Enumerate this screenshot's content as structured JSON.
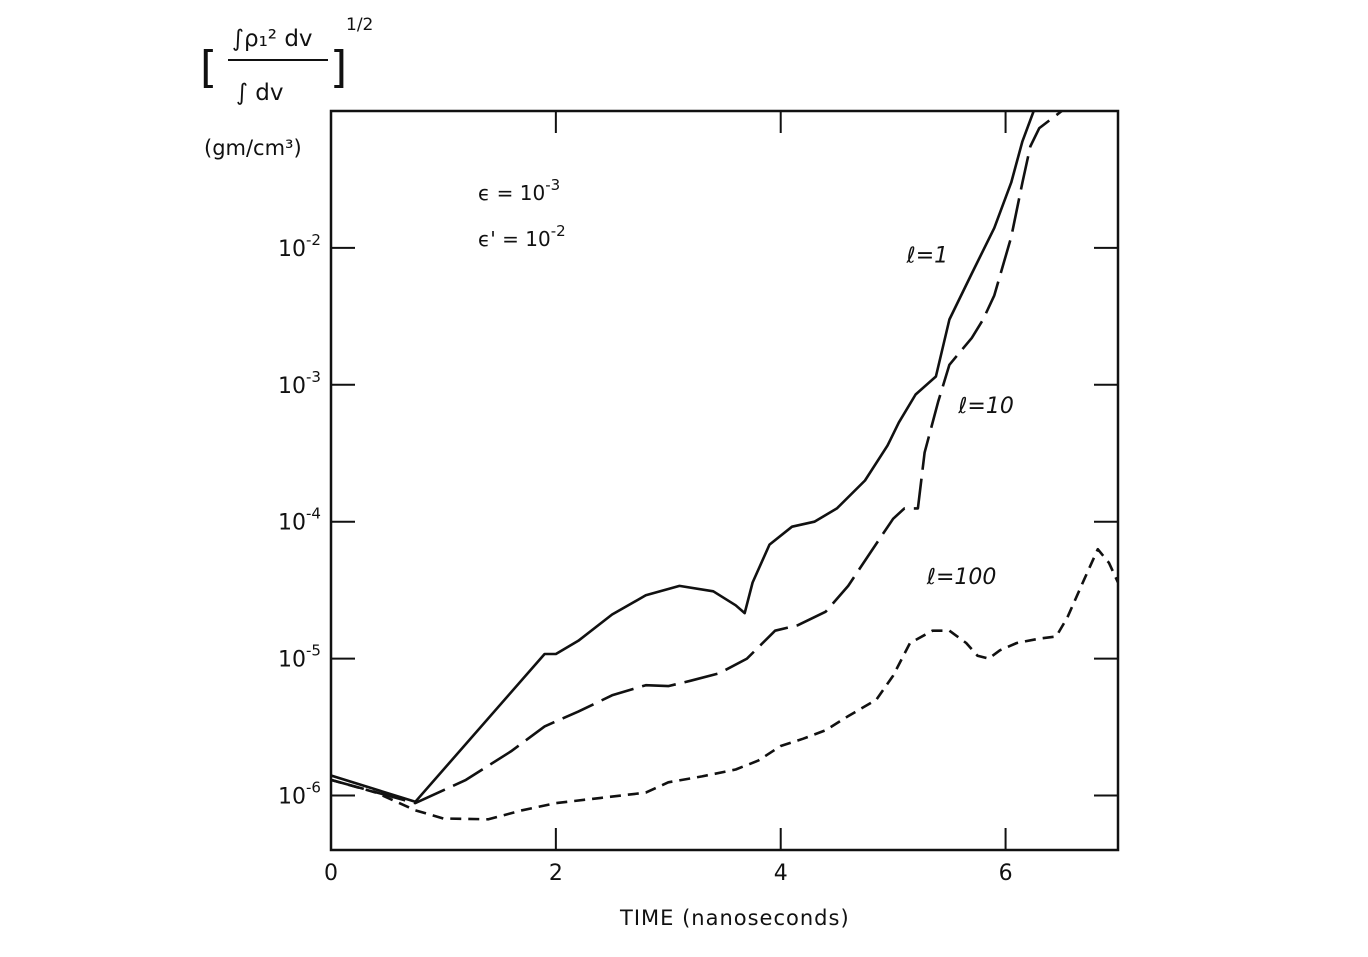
{
  "chart_data": {
    "type": "line",
    "xlabel": "TIME (nanoseconds)",
    "ylabel": {
      "numerator": "∫ρ₁² dv",
      "denominator": "∫ dv",
      "exponent": "1/2",
      "units": "(gm/cm³)"
    },
    "y_scale": "log",
    "xlim": [
      0,
      7
    ],
    "ylim": [
      4e-07,
      0.1
    ],
    "x_ticks": [
      {
        "value": 0,
        "label": "0"
      },
      {
        "value": 2,
        "label": "2"
      },
      {
        "value": 4,
        "label": "4"
      },
      {
        "value": 6,
        "label": "6"
      }
    ],
    "y_ticks": [
      {
        "value": 1e-06,
        "base": "10",
        "exp": "-6"
      },
      {
        "value": 1e-05,
        "base": "10",
        "exp": "-5"
      },
      {
        "value": 0.0001,
        "base": "10",
        "exp": "-4"
      },
      {
        "value": 0.001,
        "base": "10",
        "exp": "-3"
      },
      {
        "value": 0.01,
        "base": "10",
        "exp": "-2"
      }
    ],
    "parameters": [
      {
        "symbol": "ϵ",
        "text": " = 10",
        "exp": "-3"
      },
      {
        "symbol": "ϵ'",
        "text": " = 10",
        "exp": "-2"
      }
    ],
    "grid": false,
    "series": [
      {
        "name": "ℓ=1",
        "style": "solid",
        "label_x": 5.12,
        "label_y": 0.0078,
        "x": [
          0,
          0.75,
          1.9,
          2.0,
          2.2,
          2.5,
          2.8,
          3.1,
          3.4,
          3.6,
          3.68,
          3.75,
          3.9,
          4.1,
          4.3,
          4.5,
          4.75,
          4.95,
          5.05,
          5.2,
          5.38,
          5.5,
          5.7,
          5.9,
          6.05,
          6.15,
          6.25
        ],
        "y": [
          1.4e-06,
          9e-07,
          1.08e-05,
          1.08e-05,
          1.35e-05,
          2.1e-05,
          2.9e-05,
          3.4e-05,
          3.1e-05,
          2.45e-05,
          2.15e-05,
          3.6e-05,
          6.8e-05,
          9.2e-05,
          0.0001,
          0.000125,
          0.0002,
          0.00036,
          0.00053,
          0.00085,
          0.00115,
          0.003,
          0.0065,
          0.014,
          0.03,
          0.06,
          0.1
        ]
      },
      {
        "name": "ℓ=10",
        "style": "dash",
        "label_x": 5.58,
        "label_y": 0.00062,
        "x": [
          0,
          0.75,
          1.2,
          1.6,
          1.9,
          2.2,
          2.5,
          2.8,
          3.0,
          3.2,
          3.45,
          3.7,
          3.95,
          4.15,
          4.4,
          4.6,
          4.8,
          5.0,
          5.1,
          5.15,
          5.22,
          5.28,
          5.4,
          5.5,
          5.7,
          5.8,
          5.9,
          6.05,
          6.15,
          6.22,
          6.3,
          6.5
        ],
        "y": [
          1.3e-06,
          8.8e-07,
          1.3e-06,
          2.1e-06,
          3.2e-06,
          4.1e-06,
          5.4e-06,
          6.4e-06,
          6.3e-06,
          6.9e-06,
          7.8e-06,
          1e-05,
          1.6e-05,
          1.75e-05,
          2.2e-05,
          3.4e-05,
          6e-05,
          0.000105,
          0.000125,
          0.000125,
          0.000125,
          0.00032,
          0.00075,
          0.0014,
          0.0022,
          0.003,
          0.0045,
          0.012,
          0.03,
          0.055,
          0.075,
          0.1
        ]
      },
      {
        "name": "ℓ=100",
        "style": "short-dash",
        "label_x": 5.3,
        "label_y": 3.5e-05,
        "x": [
          0,
          0.4,
          0.75,
          1.0,
          1.4,
          1.7,
          2.0,
          2.4,
          2.8,
          3.0,
          3.3,
          3.6,
          3.8,
          4.0,
          4.2,
          4.4,
          4.6,
          4.85,
          5.0,
          5.15,
          5.35,
          5.5,
          5.65,
          5.75,
          5.85,
          5.95,
          6.1,
          6.3,
          6.45,
          6.55,
          6.7,
          6.82,
          6.92,
          7.0
        ],
        "y": [
          1.3e-06,
          1.05e-06,
          7.8e-07,
          6.8e-07,
          6.7e-07,
          7.8e-07,
          8.8e-07,
          9.6e-07,
          1.05e-06,
          1.25e-06,
          1.38e-06,
          1.55e-06,
          1.8e-06,
          2.3e-06,
          2.6e-06,
          3e-06,
          3.8e-06,
          5e-06,
          7.5e-06,
          1.3e-05,
          1.6e-05,
          1.6e-05,
          1.3e-05,
          1.05e-05,
          1e-05,
          1.15e-05,
          1.3e-05,
          1.4e-05,
          1.45e-05,
          2e-05,
          3.8e-05,
          6.3e-05,
          5e-05,
          3.6e-05
        ]
      }
    ]
  }
}
